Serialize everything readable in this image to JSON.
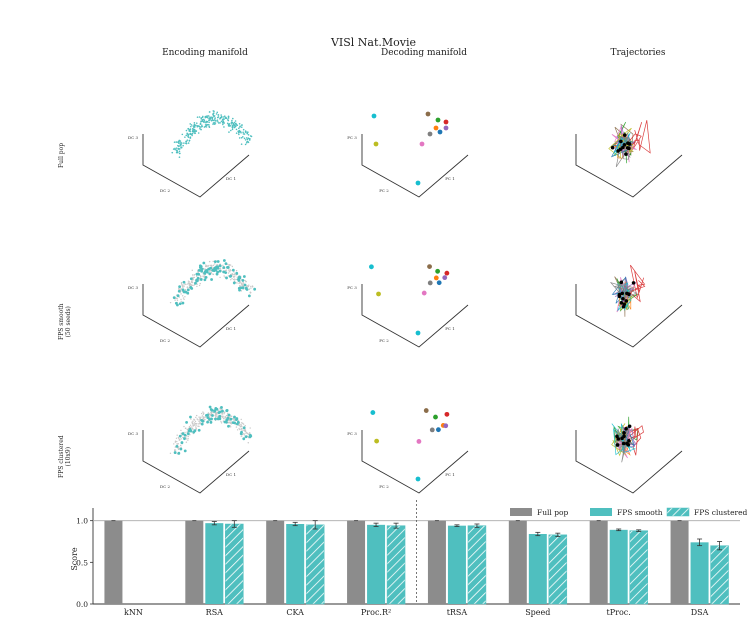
{
  "figure": {
    "suptitle": "VISl Nat.Movie",
    "columns": [
      "Encoding manifold",
      "Decoding manifold",
      "Trajectories"
    ],
    "rows": [
      {
        "label": [
          "Full pop"
        ]
      },
      {
        "label": [
          "FPS smooth",
          "(50 seeds)"
        ]
      },
      {
        "label": [
          "FPS clustered",
          "(10x9)"
        ]
      }
    ],
    "axis_labels": {
      "encoding": {
        "z": "DC 3",
        "x": "DC 2",
        "y": "DC 1"
      },
      "decoding": {
        "z": "PC 3",
        "x": "PC 2",
        "y": "PC 1"
      }
    },
    "colors": {
      "teal": "#4fbfbf",
      "full_pop": "#8c8c8c",
      "light_gray": "#c8c8c8",
      "palette": [
        "#8b6d4a",
        "#2ca02c",
        "#ff7f0e",
        "#d62728",
        "#9467bd",
        "#1f77b4",
        "#e377c2",
        "#bcbd22",
        "#17becf",
        "#7f7f7f"
      ]
    }
  },
  "chart_data": {
    "type": "bar",
    "categories": [
      "kNN",
      "RSA",
      "CKA",
      "Proc.R²",
      "tRSA",
      "Speed",
      "tProc.",
      "DSA"
    ],
    "ylabel": "Score",
    "xlabel": "",
    "ylim": [
      0,
      1.08
    ],
    "yticks": [
      "0.0",
      "0.5",
      "1.0"
    ],
    "reference_line": 1.0,
    "divider_after_category": "Proc.R²",
    "legend_position": "top-right",
    "series": [
      {
        "name": "Full pop",
        "values": [
          1.0,
          1.0,
          1.0,
          1.0,
          1.0,
          1.0,
          1.0,
          1.0
        ],
        "errors": [
          0.0,
          0.0,
          0.0,
          0.0,
          0.0,
          0.0,
          0.0,
          0.0
        ]
      },
      {
        "name": "FPS smooth",
        "values": [
          null,
          0.97,
          0.96,
          0.95,
          0.94,
          0.84,
          0.89,
          0.74
        ],
        "errors": [
          0,
          0.02,
          0.02,
          0.02,
          0.01,
          0.02,
          0.01,
          0.04
        ]
      },
      {
        "name": "FPS clustered",
        "values": [
          null,
          0.96,
          0.95,
          0.94,
          0.94,
          0.83,
          0.88,
          0.7
        ],
        "errors": [
          0,
          0.04,
          0.05,
          0.03,
          0.02,
          0.02,
          0.01,
          0.05
        ]
      }
    ]
  }
}
